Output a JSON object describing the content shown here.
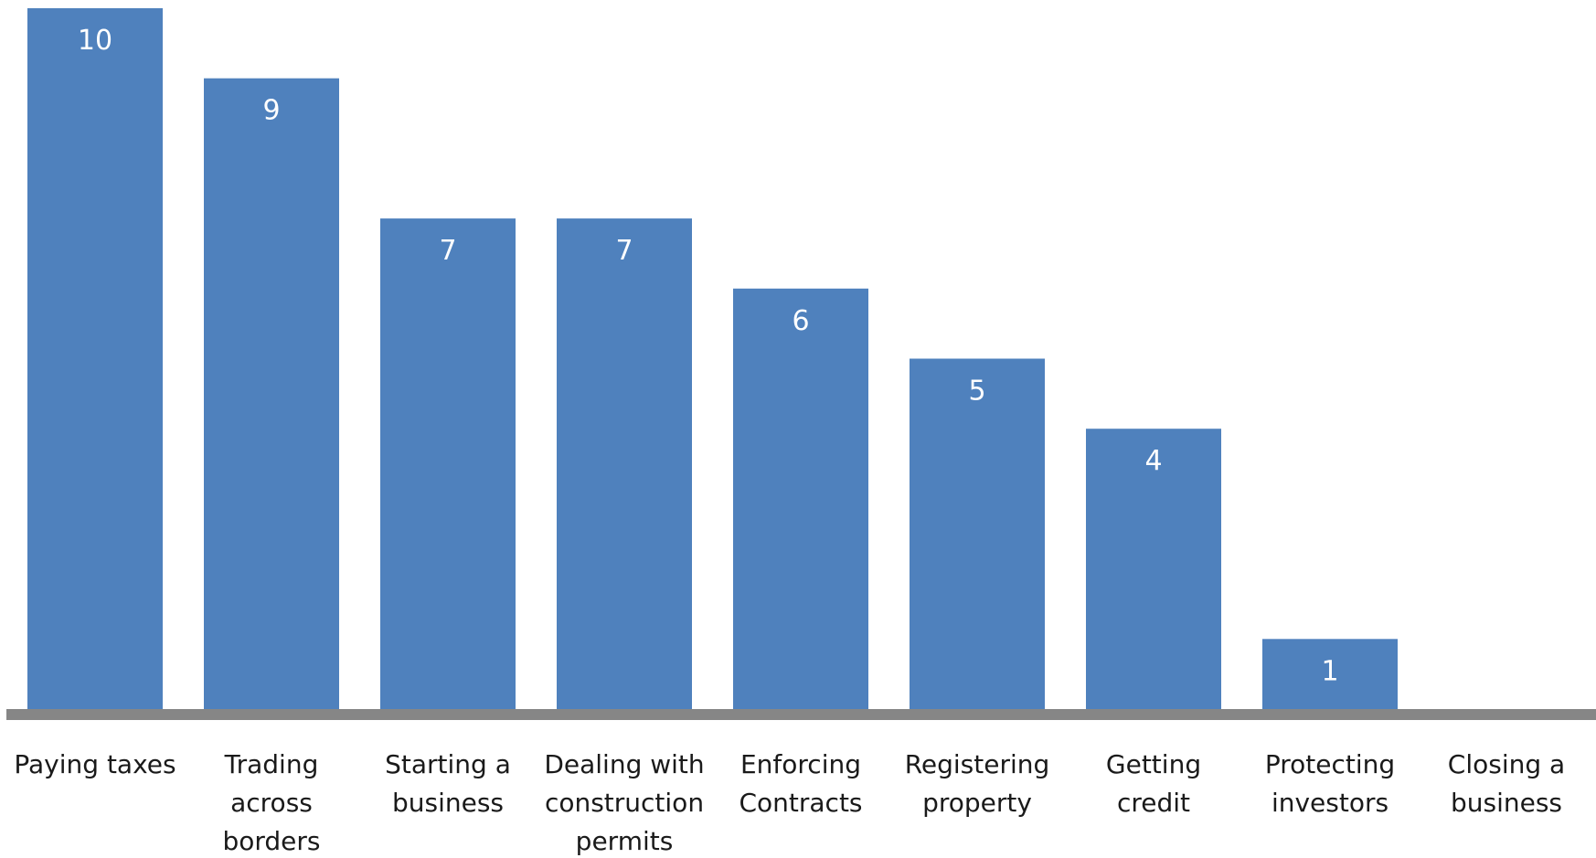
{
  "chart_data": {
    "type": "bar",
    "categories": [
      [
        "Paying taxes"
      ],
      [
        "Trading",
        "across",
        "borders"
      ],
      [
        "Starting a",
        "business"
      ],
      [
        "Dealing with",
        "construction",
        "permits"
      ],
      [
        "Enforcing",
        "Contracts"
      ],
      [
        "Registering",
        "property"
      ],
      [
        "Getting",
        "credit"
      ],
      [
        "Protecting",
        "investors"
      ],
      [
        "Closing a",
        "business"
      ]
    ],
    "values": [
      10,
      9,
      7,
      7,
      6,
      5,
      4,
      1,
      0
    ],
    "data_labels": [
      "10",
      "9",
      "7",
      "7",
      "6",
      "5",
      "4",
      "1",
      ""
    ],
    "title": "",
    "xlabel": "",
    "ylabel": "",
    "ylim": [
      0,
      10
    ],
    "grid": false,
    "legend": "none",
    "colors": {
      "bar": "#4f81bd",
      "axis": "#868686",
      "data_label": "#ffffff",
      "category_label": "#1a1a1a"
    }
  }
}
